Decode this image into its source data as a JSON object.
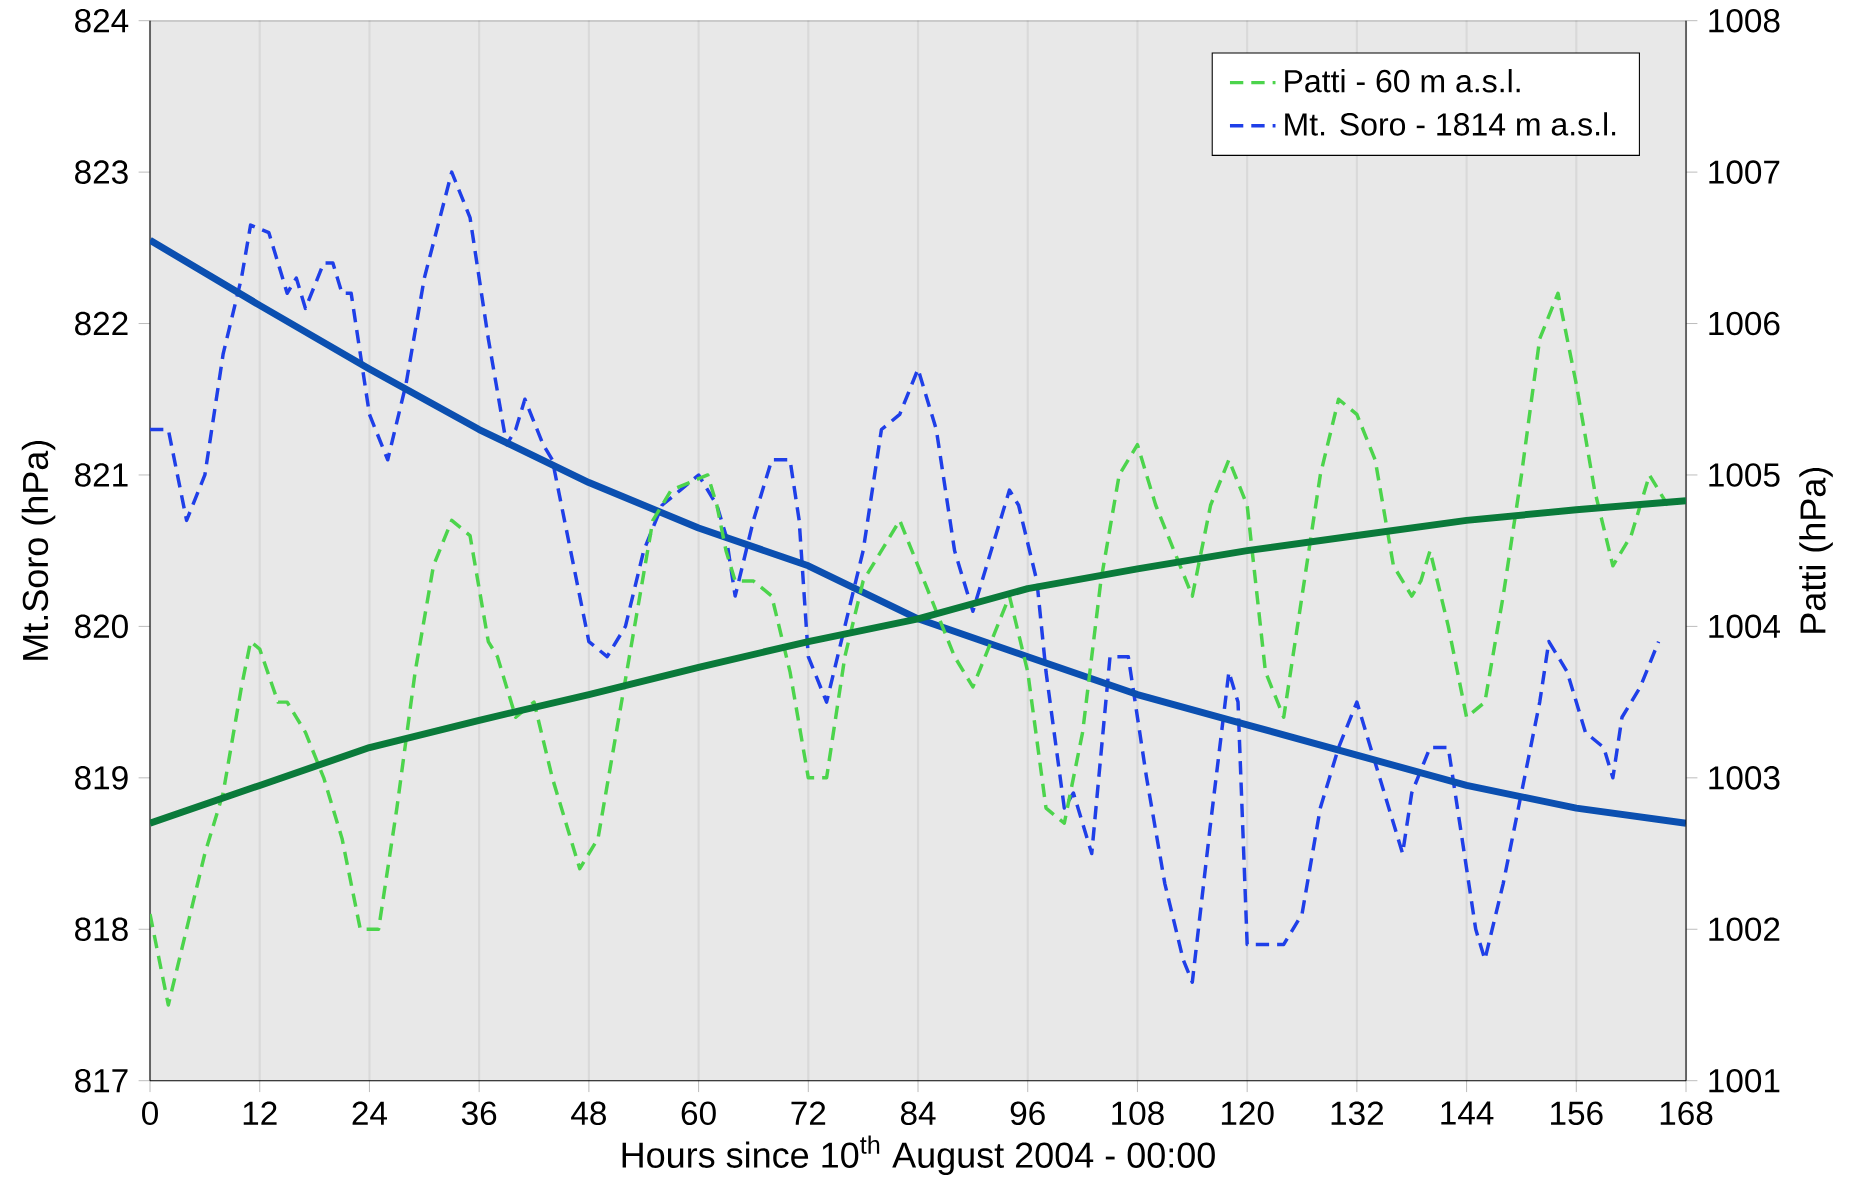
{
  "chart_data": {
    "type": "line",
    "xlabel": "Hours since 10$^{th}$ August 2004 - 00:00",
    "ylabel": "Mt.Soro (hPa)",
    "y2label": "Patti (hPa)",
    "xlim": [
      0,
      168
    ],
    "xticks": [
      0,
      12,
      24,
      36,
      48,
      60,
      72,
      84,
      96,
      108,
      120,
      132,
      144,
      156,
      168
    ],
    "ylim": [
      817,
      824
    ],
    "yticks": [
      817,
      818,
      819,
      820,
      821,
      822,
      823,
      824
    ],
    "y2lim": [
      1001,
      1008
    ],
    "y2ticks": [
      1001,
      1002,
      1003,
      1004,
      1005,
      1006,
      1007,
      1008
    ],
    "grid": "x",
    "legend": "top right",
    "marker": "none",
    "series": [
      {
        "name": "Patti - 60 m a.s.l.",
        "color": "#4cd44c",
        "axis": "y2",
        "line_style": "dashed",
        "x": [
          0,
          2,
          4,
          6,
          8,
          10,
          11,
          12,
          14,
          15,
          17,
          19,
          21,
          23,
          25,
          27,
          29,
          31,
          33,
          35,
          37,
          38,
          40,
          42,
          44,
          47,
          49,
          51,
          53,
          55,
          57,
          59,
          61,
          62,
          63,
          64,
          66,
          68,
          70,
          72,
          74,
          76,
          78,
          80,
          82,
          84,
          86,
          88,
          90,
          92,
          94,
          96,
          98,
          100,
          102,
          104,
          106,
          108,
          110,
          112,
          114,
          116,
          118,
          120,
          122,
          124,
          126,
          128,
          130,
          132,
          134,
          136,
          138,
          139,
          140,
          142,
          144,
          146,
          148,
          150,
          152,
          154,
          156,
          158,
          160,
          162,
          164,
          166
        ],
        "values": [
          1002.1,
          1001.5,
          1002.0,
          1002.5,
          1002.9,
          1003.6,
          1003.9,
          1003.85,
          1003.5,
          1003.5,
          1003.3,
          1003.0,
          1002.6,
          1002.0,
          1002.0,
          1002.8,
          1003.7,
          1004.4,
          1004.7,
          1004.6,
          1003.9,
          1003.8,
          1003.4,
          1003.5,
          1003.0,
          1002.4,
          1002.6,
          1003.3,
          1004.0,
          1004.7,
          1004.9,
          1004.95,
          1005.0,
          1004.8,
          1004.5,
          1004.3,
          1004.3,
          1004.2,
          1003.7,
          1003.0,
          1003.0,
          1003.8,
          1004.3,
          1004.5,
          1004.7,
          1004.4,
          1004.1,
          1003.8,
          1003.6,
          1003.9,
          1004.2,
          1003.7,
          1002.8,
          1002.7,
          1003.3,
          1004.3,
          1005.0,
          1005.2,
          1004.8,
          1004.5,
          1004.2,
          1004.8,
          1005.1,
          1004.8,
          1003.7,
          1003.4,
          1004.2,
          1005.0,
          1005.5,
          1005.4,
          1005.1,
          1004.4,
          1004.2,
          1004.3,
          1004.5,
          1004.0,
          1003.4,
          1003.5,
          1004.2,
          1005.0,
          1005.9,
          1006.2,
          1005.6,
          1004.9,
          1004.4,
          1004.6,
          1005.0,
          1004.8
        ]
      },
      {
        "name": "Mt. Soro - 1814 m a.s.l.",
        "color": "#1f3fe8",
        "line_style": "dashed",
        "x": [
          0,
          2,
          4,
          6,
          8,
          10,
          11,
          13,
          15,
          16,
          17,
          19,
          20,
          21,
          22,
          24,
          26,
          28,
          30,
          33,
          35,
          37,
          39,
          40,
          41,
          43,
          44,
          46,
          48,
          50,
          52,
          54,
          56,
          58,
          60,
          62,
          63,
          64,
          66,
          68,
          70,
          71,
          72,
          74,
          76,
          78,
          80,
          82,
          84,
          86,
          88,
          90,
          92,
          94,
          95,
          97,
          98,
          100,
          101,
          103,
          105,
          107,
          109,
          111,
          113,
          114,
          116,
          118,
          119,
          120,
          122,
          124,
          126,
          128,
          130,
          132,
          133,
          135,
          137,
          138,
          140,
          141,
          142,
          143,
          145,
          146,
          148,
          150,
          152,
          153,
          155,
          157,
          159,
          160,
          161,
          163,
          165
        ],
        "values": [
          821.3,
          821.3,
          820.7,
          821.0,
          821.8,
          822.3,
          822.65,
          822.6,
          822.2,
          822.3,
          822.1,
          822.4,
          822.4,
          822.2,
          822.2,
          821.4,
          821.1,
          821.6,
          822.3,
          823.0,
          822.7,
          821.9,
          821.2,
          821.3,
          821.5,
          821.2,
          821.1,
          820.5,
          819.9,
          819.8,
          820.0,
          820.5,
          820.8,
          820.9,
          821.0,
          820.8,
          820.6,
          820.2,
          820.7,
          821.1,
          821.1,
          820.7,
          819.8,
          819.5,
          820.0,
          820.5,
          821.3,
          821.4,
          821.7,
          821.3,
          820.5,
          820.1,
          820.5,
          820.9,
          820.8,
          820.3,
          819.7,
          818.8,
          818.9,
          818.5,
          819.8,
          819.8,
          819.0,
          818.3,
          817.8,
          817.65,
          818.7,
          819.7,
          819.5,
          817.9,
          817.9,
          817.9,
          818.1,
          818.8,
          819.2,
          819.5,
          819.3,
          818.9,
          818.5,
          818.9,
          819.2,
          819.2,
          819.2,
          818.8,
          818.0,
          817.8,
          818.3,
          818.9,
          819.5,
          819.9,
          819.7,
          819.3,
          819.2,
          819.0,
          819.4,
          819.6,
          819.9
        ]
      },
      {
        "color": "#0a7a3a",
        "axis": "y2",
        "line_style": "solid",
        "x": [
          0,
          12,
          24,
          36,
          48,
          60,
          72,
          84,
          96,
          108,
          120,
          132,
          144,
          156,
          168
        ],
        "values": [
          1002.7,
          1002.95,
          1003.2,
          1003.38,
          1003.55,
          1003.73,
          1003.9,
          1004.05,
          1004.25,
          1004.38,
          1004.5,
          1004.6,
          1004.7,
          1004.77,
          1004.83
        ]
      },
      {
        "color": "#0b4fb0",
        "line_style": "solid",
        "x": [
          0,
          12,
          24,
          36,
          48,
          60,
          72,
          84,
          96,
          108,
          120,
          132,
          144,
          156,
          168
        ],
        "values": [
          822.55,
          822.12,
          821.7,
          821.3,
          820.95,
          820.65,
          820.4,
          820.05,
          819.8,
          819.55,
          819.35,
          819.15,
          818.95,
          818.8,
          818.7
        ]
      }
    ]
  }
}
